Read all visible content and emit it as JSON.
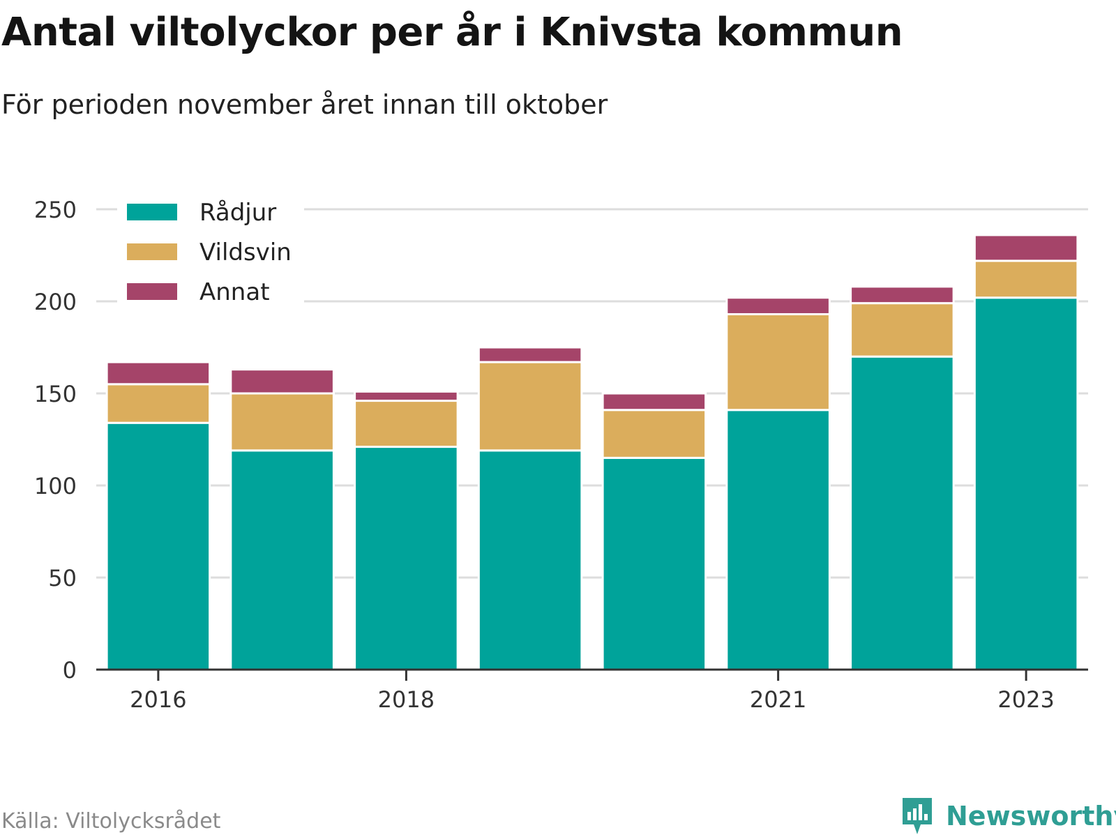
{
  "title": "Antal viltolyckor per år i Knivsta kommun",
  "subtitle": "För perioden november året innan till oktober",
  "source": "Källa: Viltolycksrådet",
  "brand": {
    "name": "Newsworthy",
    "icon": "newsworthy-logo-icon",
    "color": "#2f9e94"
  },
  "colors": {
    "grid": "#dddddd",
    "axis": "#333333",
    "text": "#333333"
  },
  "chart_data": {
    "type": "bar",
    "stacked": true,
    "categories": [
      "2016",
      "2017",
      "2018",
      "2019",
      "2020",
      "2021",
      "2022",
      "2023"
    ],
    "x_tick_labels": [
      "2016",
      "",
      "2018",
      "",
      "",
      "2021",
      "",
      "2023"
    ],
    "series": [
      {
        "name": "Rådjur",
        "color": "#00a39a",
        "values": [
          134,
          119,
          121,
          119,
          115,
          141,
          170,
          202
        ]
      },
      {
        "name": "Vildsvin",
        "color": "#dbad5c",
        "values": [
          21,
          31,
          25,
          48,
          26,
          52,
          29,
          20
        ]
      },
      {
        "name": "Annat",
        "color": "#a54469",
        "values": [
          12,
          13,
          5,
          8,
          9,
          9,
          9,
          14
        ]
      }
    ],
    "y_ticks": [
      0,
      50,
      100,
      150,
      200,
      250
    ],
    "ylim": [
      0,
      250
    ],
    "grid": true,
    "legend_position": "top-left",
    "xlabel": "",
    "ylabel": ""
  }
}
